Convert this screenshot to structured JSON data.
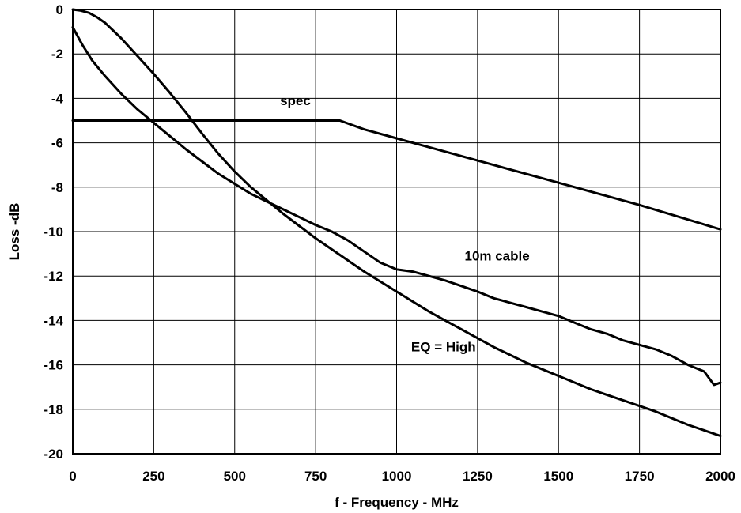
{
  "chart_data": {
    "type": "line",
    "xlabel": "f - Frequency - MHz",
    "ylabel": "Loss -dB",
    "xlim": [
      0,
      2000
    ],
    "ylim": [
      -20,
      0
    ],
    "xticks": [
      0,
      250,
      500,
      750,
      1000,
      1250,
      1500,
      1750,
      2000
    ],
    "yticks": [
      0,
      -2,
      -4,
      -6,
      -8,
      -10,
      -12,
      -14,
      -16,
      -18,
      -20
    ],
    "grid": true,
    "series": [
      {
        "name": "spec",
        "x": [
          0,
          825,
          900,
          1000,
          1100,
          1250,
          1500,
          1750,
          2000
        ],
        "y": [
          -5.0,
          -5.0,
          -5.4,
          -5.8,
          -6.2,
          -6.8,
          -7.8,
          -8.8,
          -9.9
        ]
      },
      {
        "name": "10m cable",
        "x": [
          0,
          30,
          60,
          100,
          150,
          200,
          250,
          300,
          350,
          400,
          450,
          500,
          550,
          600,
          650,
          700,
          750,
          800,
          850,
          900,
          950,
          1000,
          1050,
          1100,
          1150,
          1200,
          1250,
          1300,
          1350,
          1400,
          1450,
          1500,
          1550,
          1600,
          1650,
          1700,
          1750,
          1800,
          1850,
          1900,
          1950,
          1980,
          2000
        ],
        "y": [
          -0.8,
          -1.6,
          -2.3,
          -3.0,
          -3.8,
          -4.5,
          -5.1,
          -5.7,
          -6.3,
          -6.85,
          -7.4,
          -7.85,
          -8.3,
          -8.65,
          -9.0,
          -9.35,
          -9.7,
          -10.0,
          -10.4,
          -10.9,
          -11.4,
          -11.7,
          -11.8,
          -12.0,
          -12.2,
          -12.45,
          -12.7,
          -13.0,
          -13.2,
          -13.4,
          -13.6,
          -13.8,
          -14.1,
          -14.4,
          -14.6,
          -14.9,
          -15.1,
          -15.3,
          -15.6,
          -16.0,
          -16.3,
          -16.9,
          -16.8
        ]
      },
      {
        "name": "EQ = High",
        "x": [
          0,
          25,
          50,
          75,
          100,
          150,
          200,
          250,
          300,
          350,
          400,
          450,
          500,
          550,
          600,
          650,
          700,
          750,
          800,
          900,
          1000,
          1100,
          1200,
          1300,
          1400,
          1500,
          1600,
          1700,
          1800,
          1900,
          2000
        ],
        "y": [
          0.0,
          -0.05,
          -0.15,
          -0.35,
          -0.6,
          -1.3,
          -2.1,
          -2.9,
          -3.75,
          -4.65,
          -5.6,
          -6.5,
          -7.3,
          -8.0,
          -8.6,
          -9.2,
          -9.75,
          -10.3,
          -10.8,
          -11.8,
          -12.7,
          -13.6,
          -14.4,
          -15.2,
          -15.9,
          -16.5,
          -17.1,
          -17.6,
          -18.1,
          -18.7,
          -19.2
        ]
      }
    ],
    "annotations": [
      {
        "text": "spec",
        "x": 640,
        "y": -4.3
      },
      {
        "text": "10m cable",
        "x": 1210,
        "y": -11.3
      },
      {
        "text": "EQ = High",
        "x": 1045,
        "y": -15.4
      }
    ]
  }
}
